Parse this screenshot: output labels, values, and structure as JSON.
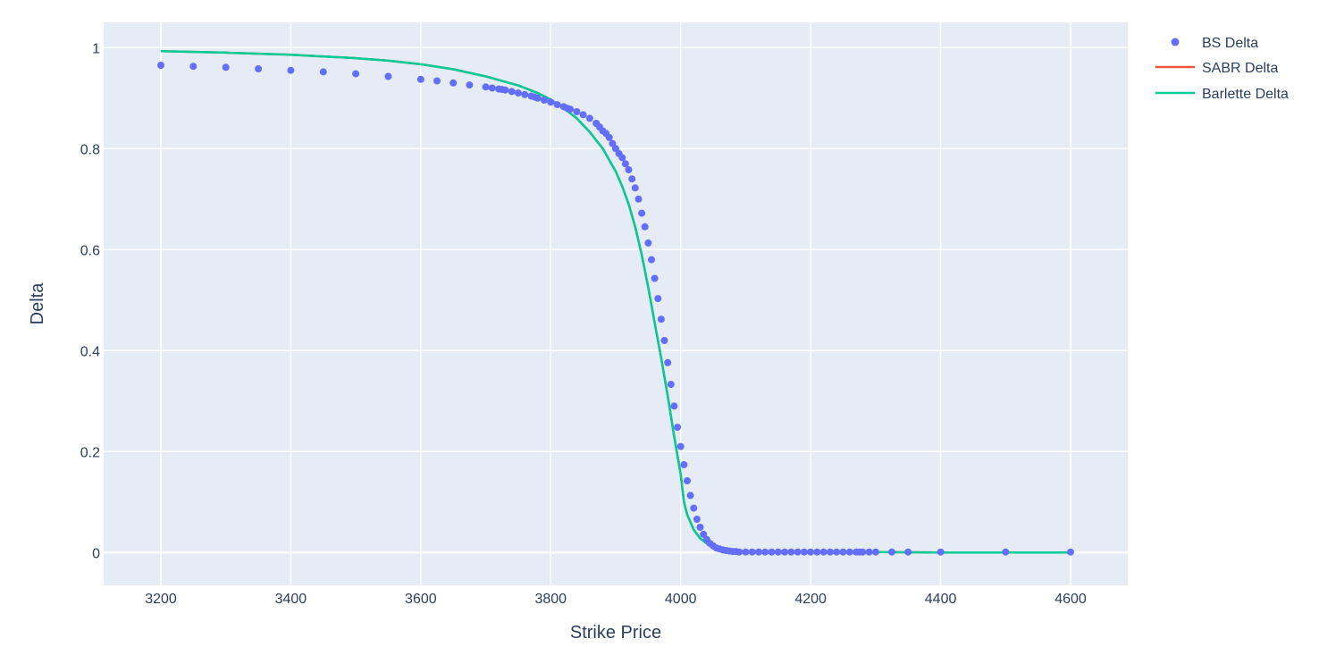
{
  "chart_data": {
    "type": "line",
    "title": "",
    "xlabel": "Strike Price",
    "ylabel": "Delta",
    "xlim": [
      3112,
      4688
    ],
    "ylim": [
      -0.065,
      1.05
    ],
    "grid": true,
    "legend_position": "top-right",
    "x_ticks": [
      3200,
      3400,
      3600,
      3800,
      4000,
      4200,
      4400,
      4600
    ],
    "y_ticks": [
      0,
      0.2,
      0.4,
      0.6,
      0.8,
      1
    ],
    "x_tick_labels": [
      "3200",
      "3400",
      "3600",
      "3800",
      "4000",
      "4200",
      "4400",
      "4600"
    ],
    "y_tick_labels": [
      "0",
      "0.2",
      "0.4",
      "0.6",
      "0.8",
      "1"
    ],
    "series": [
      {
        "name": "BS Delta",
        "mode": "markers",
        "color": "#636efa",
        "x": [
          3200,
          3250,
          3300,
          3350,
          3400,
          3450,
          3500,
          3550,
          3600,
          3625,
          3650,
          3675,
          3700,
          3710,
          3720,
          3725,
          3730,
          3740,
          3750,
          3760,
          3770,
          3775,
          3780,
          3790,
          3800,
          3810,
          3820,
          3825,
          3830,
          3840,
          3850,
          3860,
          3870,
          3875,
          3880,
          3885,
          3890,
          3895,
          3900,
          3905,
          3910,
          3915,
          3920,
          3925,
          3930,
          3935,
          3940,
          3945,
          3950,
          3955,
          3960,
          3965,
          3970,
          3975,
          3980,
          3985,
          3990,
          3995,
          4000,
          4005,
          4010,
          4015,
          4020,
          4025,
          4030,
          4035,
          4040,
          4045,
          4050,
          4055,
          4060,
          4065,
          4070,
          4075,
          4080,
          4085,
          4090,
          4100,
          4110,
          4120,
          4130,
          4140,
          4150,
          4160,
          4170,
          4180,
          4190,
          4200,
          4210,
          4220,
          4230,
          4240,
          4250,
          4260,
          4270,
          4275,
          4280,
          4290,
          4300,
          4325,
          4350,
          4400,
          4500,
          4600
        ],
        "y": [
          0.965,
          0.963,
          0.961,
          0.958,
          0.955,
          0.952,
          0.948,
          0.943,
          0.937,
          0.934,
          0.93,
          0.926,
          0.922,
          0.92,
          0.918,
          0.917,
          0.916,
          0.913,
          0.91,
          0.907,
          0.904,
          0.902,
          0.9,
          0.896,
          0.892,
          0.887,
          0.883,
          0.88,
          0.878,
          0.873,
          0.867,
          0.86,
          0.85,
          0.843,
          0.835,
          0.83,
          0.822,
          0.81,
          0.8,
          0.79,
          0.782,
          0.77,
          0.758,
          0.74,
          0.722,
          0.7,
          0.672,
          0.645,
          0.613,
          0.58,
          0.543,
          0.503,
          0.462,
          0.42,
          0.376,
          0.333,
          0.29,
          0.248,
          0.21,
          0.174,
          0.142,
          0.113,
          0.088,
          0.066,
          0.05,
          0.036,
          0.026,
          0.018,
          0.013,
          0.009,
          0.007,
          0.005,
          0.004,
          0.003,
          0.002,
          0.002,
          0.001,
          0.001,
          0.001,
          0.001,
          0.001,
          0.001,
          0.001,
          0.001,
          0.001,
          0.001,
          0.001,
          0.001,
          0.001,
          0.001,
          0.001,
          0.001,
          0.001,
          0.001,
          0.001,
          0.001,
          0.001,
          0.001,
          0.001,
          0.001,
          0.001,
          0.001,
          0.001,
          0.001
        ]
      },
      {
        "name": "SABR Delta",
        "mode": "lines",
        "color": "#ef553b",
        "x": [
          3200,
          3300,
          3400,
          3500,
          3550,
          3600,
          3650,
          3700,
          3750,
          3780,
          3800,
          3820,
          3840,
          3860,
          3880,
          3900,
          3910,
          3920,
          3930,
          3940,
          3950,
          3960,
          3970,
          3980,
          3990,
          4000,
          4005,
          4010,
          4020,
          4030,
          4040,
          4050,
          4060,
          4080,
          4100,
          4150,
          4200,
          4250,
          4300,
          4400,
          4500,
          4600
        ],
        "y": [
          0.993,
          0.99,
          0.986,
          0.979,
          0.974,
          0.967,
          0.957,
          0.943,
          0.925,
          0.91,
          0.897,
          0.88,
          0.86,
          0.833,
          0.8,
          0.755,
          0.725,
          0.69,
          0.645,
          0.59,
          0.525,
          0.455,
          0.385,
          0.31,
          0.23,
          0.155,
          0.1,
          0.075,
          0.045,
          0.028,
          0.018,
          0.012,
          0.008,
          0.004,
          0.003,
          0.002,
          0.002,
          0.001,
          0.001,
          0.0,
          0.0,
          0.0
        ]
      },
      {
        "name": "Barlette Delta",
        "mode": "lines",
        "color": "#00cc96",
        "x": [
          3200,
          3300,
          3400,
          3500,
          3550,
          3600,
          3650,
          3700,
          3750,
          3780,
          3800,
          3820,
          3840,
          3860,
          3880,
          3900,
          3910,
          3920,
          3930,
          3940,
          3950,
          3960,
          3970,
          3980,
          3990,
          4000,
          4005,
          4010,
          4020,
          4030,
          4040,
          4050,
          4060,
          4080,
          4100,
          4150,
          4200,
          4250,
          4300,
          4400,
          4500,
          4600
        ],
        "y": [
          0.993,
          0.99,
          0.986,
          0.979,
          0.974,
          0.967,
          0.957,
          0.943,
          0.925,
          0.91,
          0.897,
          0.88,
          0.86,
          0.833,
          0.8,
          0.755,
          0.725,
          0.69,
          0.645,
          0.59,
          0.525,
          0.455,
          0.385,
          0.31,
          0.23,
          0.155,
          0.1,
          0.075,
          0.045,
          0.028,
          0.018,
          0.012,
          0.008,
          0.004,
          0.003,
          0.002,
          0.002,
          0.001,
          0.001,
          0.0,
          0.0,
          0.0
        ]
      }
    ]
  },
  "colors": {
    "plot_background": "#e5ecf6",
    "grid": "#ffffff",
    "text": "#2a3f5f"
  }
}
